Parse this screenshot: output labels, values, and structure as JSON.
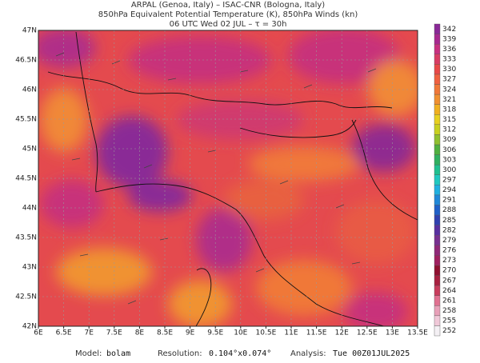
{
  "header": {
    "lines": [
      "ARPAL (Genoa, Italy)  –  ISAC-CNR (Bologna, Italy)",
      "850hPa Equivalent Potential Temperature (K), 850hPa Winds (kn)",
      "06 UTC Wed 02 JUL  –  τ = 30h"
    ]
  },
  "map": {
    "lon_labels": [
      "6E",
      "6.5E",
      "7E",
      "7.5E",
      "8E",
      "8.5E",
      "9E",
      "9.5E",
      "10E",
      "10.5E",
      "11E",
      "11.5E",
      "12E",
      "12.5E",
      "13E",
      "13.5E"
    ],
    "lat_labels": [
      "42N",
      "42.5N",
      "43N",
      "43.5N",
      "44N",
      "44.5N",
      "45N",
      "45.5N",
      "46N",
      "46.5N",
      "47N"
    ]
  },
  "colorbar": {
    "levels": [
      252,
      255,
      258,
      261,
      264,
      267,
      270,
      273,
      276,
      279,
      282,
      285,
      288,
      291,
      294,
      297,
      300,
      303,
      306,
      309,
      312,
      315,
      318,
      321,
      324,
      327,
      330,
      333,
      336,
      339,
      342
    ]
  },
  "footer": {
    "model_label": "Model:",
    "model": "bolam",
    "resolution_label": "Resolution:",
    "resolution": "0.104°x0.074°",
    "analysis_label": "Analysis:",
    "analysis": "Tue 00Z01JUL2025"
  }
}
